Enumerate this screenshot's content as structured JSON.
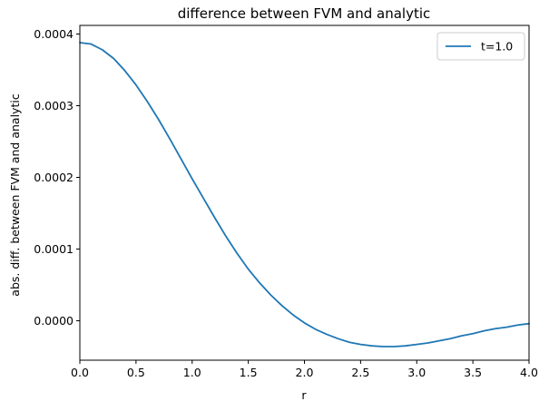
{
  "chart_data": {
    "type": "line",
    "title": "difference between FVM and analytic",
    "xlabel": "r",
    "ylabel": "abs. diff. between FVM and analytic",
    "xlim": [
      0,
      4.0
    ],
    "ylim": [
      -5.5e-05,
      0.000412
    ],
    "xticks": [
      0.0,
      0.5,
      1.0,
      1.5,
      2.0,
      2.5,
      3.0,
      3.5,
      4.0
    ],
    "xtick_labels": [
      "0.0",
      "0.5",
      "1.0",
      "1.5",
      "2.0",
      "2.5",
      "3.0",
      "3.5",
      "4.0"
    ],
    "yticks": [
      0.0,
      0.0001,
      0.0002,
      0.0003,
      0.0004
    ],
    "ytick_labels": [
      "0.0000",
      "0.0001",
      "0.0002",
      "0.0003",
      "0.0004"
    ],
    "grid": false,
    "legend_position": "top-right",
    "series": [
      {
        "name": "t=1.0",
        "color": "#1f77b4",
        "x": [
          0.0,
          0.1,
          0.2,
          0.3,
          0.4,
          0.5,
          0.6,
          0.7,
          0.8,
          0.9,
          1.0,
          1.1,
          1.2,
          1.3,
          1.4,
          1.5,
          1.6,
          1.7,
          1.8,
          1.9,
          2.0,
          2.1,
          2.2,
          2.3,
          2.4,
          2.5,
          2.6,
          2.7,
          2.8,
          2.9,
          3.0,
          3.1,
          3.2,
          3.3,
          3.4,
          3.5,
          3.6,
          3.7,
          3.8,
          3.9,
          4.0
        ],
        "y": [
          0.000388,
          0.000386,
          0.000378,
          0.000366,
          0.000349,
          0.000329,
          0.000306,
          0.000281,
          0.000254,
          0.000226,
          0.000198,
          0.000171,
          0.000144,
          0.000118,
          9.4e-05,
          7.2e-05,
          5.3e-05,
          3.6e-05,
          2.1e-05,
          8e-06,
          -3e-06,
          -1.2e-05,
          -1.9e-05,
          -2.5e-05,
          -3e-05,
          -3.3e-05,
          -3.5e-05,
          -3.6e-05,
          -3.6e-05,
          -3.5e-05,
          -3.3e-05,
          -3.1e-05,
          -2.8e-05,
          -2.5e-05,
          -2.1e-05,
          -1.8e-05,
          -1.4e-05,
          -1.1e-05,
          -9e-06,
          -6e-06,
          -4e-06
        ]
      }
    ]
  }
}
